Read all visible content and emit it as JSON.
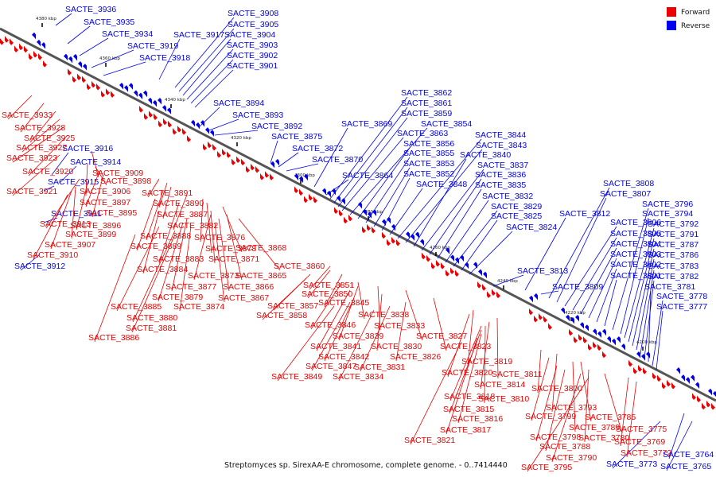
{
  "caption": "Streptomyces sp. SirexAA-E chromosome, complete genome. - 0..7414440",
  "legend": {
    "forward": {
      "label": "Forward",
      "color": "#ee0000"
    },
    "reverse": {
      "label": "Reverse",
      "color": "#0000ee"
    }
  },
  "colors": {
    "forward": "#ee0000",
    "reverse": "#0000ee",
    "axis": "#555555"
  },
  "ticks": [
    {
      "label": "4380 kbp"
    },
    {
      "label": "4360 kbp"
    },
    {
      "label": "4340 kbp"
    },
    {
      "label": "4320 kbp"
    },
    {
      "label": "4300 kbp"
    },
    {
      "label": "4280 kbp"
    },
    {
      "label": "4260 kbp"
    },
    {
      "label": "4240 kbp"
    },
    {
      "label": "4220 kbp"
    },
    {
      "label": "4200 kbp"
    }
  ],
  "reverse_labels": [
    "SACTE_3936",
    "SACTE_3935",
    "SACTE_3934",
    "SACTE_3919",
    "SACTE_3918",
    "SACTE_3917",
    "SACTE_3908",
    "SACTE_3905",
    "SACTE_3904",
    "SACTE_3903",
    "SACTE_3902",
    "SACTE_3901",
    "SACTE_3894",
    "SACTE_3893",
    "SACTE_3892",
    "SACTE_3875",
    "SACTE_3872",
    "SACTE_3870",
    "SACTE_3869",
    "SACTE_3864",
    "SACTE_3862",
    "SACTE_3861",
    "SACTE_3859",
    "SACTE_3863",
    "SACTE_3854",
    "SACTE_3856",
    "SACTE_3855",
    "SACTE_3853",
    "SACTE_3852",
    "SACTE_3848",
    "SACTE_3844",
    "SACTE_3843",
    "SACTE_3840",
    "SACTE_3837",
    "SACTE_3836",
    "SACTE_3835",
    "SACTE_3832",
    "SACTE_3829",
    "SACTE_3825",
    "SACTE_3824",
    "SACTE_3813",
    "SACTE_3812",
    "SACTE_3809",
    "SACTE_3808",
    "SACTE_3807",
    "SACTE_3806",
    "SACTE_3805",
    "SACTE_3804",
    "SACTE_3803",
    "SACTE_3802",
    "SACTE_3801",
    "SACTE_3796",
    "SACTE_3794",
    "SACTE_3792",
    "SACTE_3791",
    "SACTE_3787",
    "SACTE_3786",
    "SACTE_3783",
    "SACTE_3782",
    "SACTE_3781",
    "SACTE_3778",
    "SACTE_3777",
    "SACTE_3916",
    "SACTE_3914",
    "SACTE_3915",
    "SACTE_3911",
    "SACTE_3912",
    "SACTE_3773",
    "SACTE_3764",
    "SACTE_3765"
  ],
  "forward_labels": [
    "SACTE_3933",
    "SACTE_3928",
    "SACTE_3925",
    "SACTE_3927",
    "SACTE_3923",
    "SACTE_3920",
    "SACTE_3909",
    "SACTE_3921",
    "SACTE_3906",
    "SACTE_3898",
    "SACTE_3897",
    "SACTE_3895",
    "SACTE_3913",
    "SACTE_3896",
    "SACTE_3899",
    "SACTE_3907",
    "SACTE_3910",
    "SACTE_3891",
    "SACTE_3890",
    "SACTE_3887",
    "SACTE_3888",
    "SACTE_3882",
    "SACTE_3876",
    "SACTE_3889",
    "SACTE_3878",
    "SACTE_3868",
    "SACTE_3883",
    "SACTE_3871",
    "SACTE_3884",
    "SACTE_3873",
    "SACTE_3865",
    "SACTE_3860",
    "SACTE_3877",
    "SACTE_3866",
    "SACTE_3879",
    "SACTE_3867",
    "SACTE_3885",
    "SACTE_3874",
    "SACTE_3880",
    "SACTE_3881",
    "SACTE_3886",
    "SACTE_3851",
    "SACTE_3850",
    "SACTE_3857",
    "SACTE_3845",
    "SACTE_3858",
    "SACTE_3838",
    "SACTE_3846",
    "SACTE_3833",
    "SACTE_3839",
    "SACTE_3827",
    "SACTE_3841",
    "SACTE_3830",
    "SACTE_3823",
    "SACTE_3842",
    "SACTE_3826",
    "SACTE_3847",
    "SACTE_3831",
    "SACTE_3849",
    "SACTE_3834",
    "SACTE_3819",
    "SACTE_3820",
    "SACTE_3811",
    "SACTE_3814",
    "SACTE_3810",
    "SACTE_3818",
    "SACTE_3815",
    "SACTE_3816",
    "SACTE_3817",
    "SACTE_3821",
    "SACTE_3800",
    "SACTE_3793",
    "SACTE_3799",
    "SACTE_3789",
    "SACTE_3785",
    "SACTE_3798",
    "SACTE_3788",
    "SACTE_3780",
    "SACTE_3775",
    "SACTE_3790",
    "SACTE_3769",
    "SACTE_3772",
    "SACTE_3795"
  ]
}
